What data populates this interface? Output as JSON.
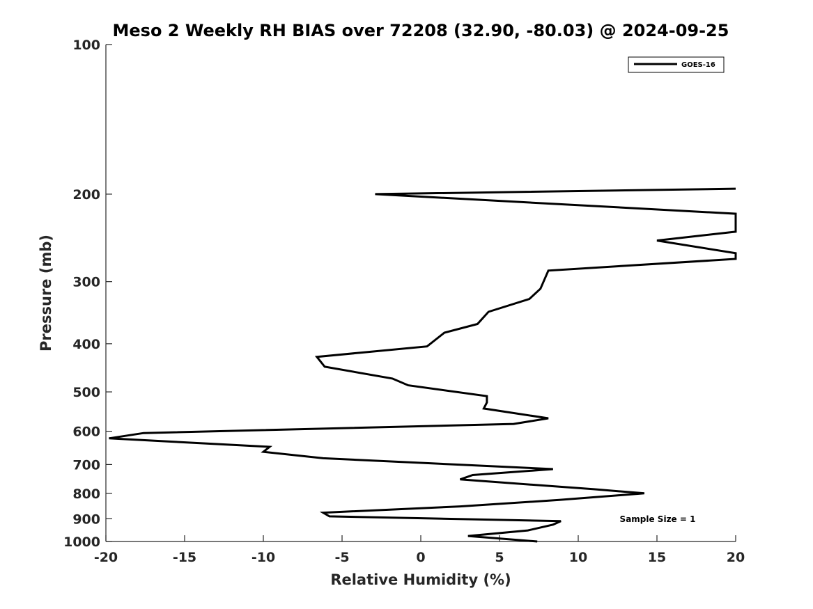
{
  "chart_data": {
    "type": "line",
    "title": "Meso 2 Weekly RH BIAS over 72208 (32.90, -80.03) @ 2024-09-25",
    "xlabel": "Relative Humidity (%)",
    "ylabel": "Pressure (mb)",
    "xlim": [
      -20,
      20
    ],
    "ylim": [
      1000,
      100
    ],
    "y_scale": "log",
    "y_reversed": true,
    "xticks": [
      -20,
      -15,
      -10,
      -5,
      0,
      5,
      10,
      15,
      20
    ],
    "yticks": [
      100,
      200,
      300,
      400,
      500,
      600,
      700,
      800,
      900,
      1000
    ],
    "grid": false,
    "legend": {
      "position": "top-right",
      "entries": [
        "GOES-16"
      ]
    },
    "annotation": "Sample Size = 1",
    "series": [
      {
        "name": "GOES-16",
        "color": "#000000",
        "points": [
          [
            7.4,
            1000
          ],
          [
            3.0,
            975
          ],
          [
            6.8,
            950
          ],
          [
            8.4,
            925
          ],
          [
            8.9,
            910
          ],
          [
            -5.8,
            890
          ],
          [
            -6.2,
            875
          ],
          [
            2.5,
            850
          ],
          [
            8.8,
            825
          ],
          [
            14.2,
            800
          ],
          [
            11.0,
            785
          ],
          [
            2.5,
            750
          ],
          [
            3.3,
            735
          ],
          [
            8.4,
            715
          ],
          [
            -6.2,
            680
          ],
          [
            -10.0,
            660
          ],
          [
            -9.6,
            645
          ],
          [
            -19.8,
            620
          ],
          [
            -17.6,
            605
          ],
          [
            5.9,
            580
          ],
          [
            8.1,
            565
          ],
          [
            4.0,
            540
          ],
          [
            4.2,
            525
          ],
          [
            4.2,
            510
          ],
          [
            -0.8,
            485
          ],
          [
            -1.8,
            470
          ],
          [
            -6.1,
            445
          ],
          [
            -6.6,
            425
          ],
          [
            0.4,
            405
          ],
          [
            1.5,
            380
          ],
          [
            3.6,
            365
          ],
          [
            4.3,
            345
          ],
          [
            6.9,
            325
          ],
          [
            7.6,
            310
          ],
          [
            8.1,
            285
          ],
          [
            20.0,
            270
          ],
          [
            20.0,
            263
          ],
          [
            15.0,
            248
          ],
          [
            20.0,
            238
          ],
          [
            20.0,
            219
          ],
          [
            -2.9,
            200
          ],
          [
            20.0,
            195
          ]
        ]
      }
    ]
  }
}
